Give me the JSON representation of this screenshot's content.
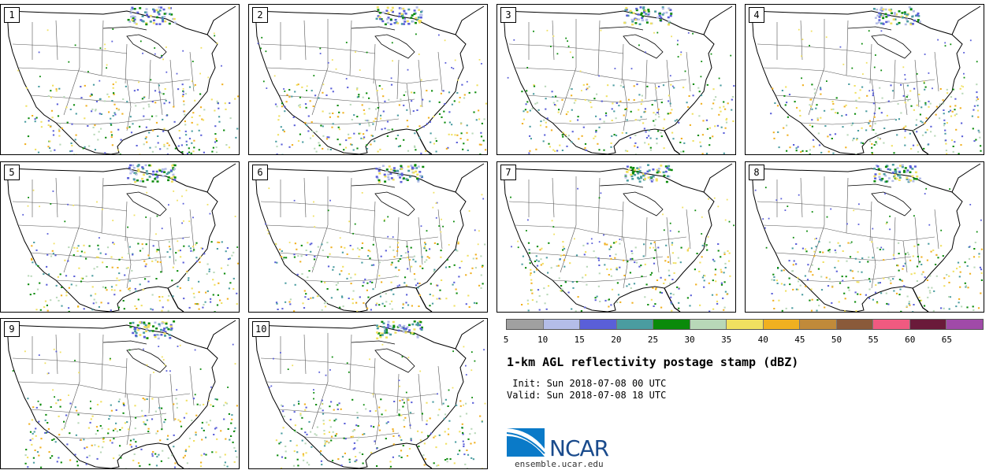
{
  "panels": [
    {
      "label": "1"
    },
    {
      "label": "2"
    },
    {
      "label": "3"
    },
    {
      "label": "4"
    },
    {
      "label": "5"
    },
    {
      "label": "6"
    },
    {
      "label": "7"
    },
    {
      "label": "8"
    },
    {
      "label": "9"
    },
    {
      "label": "10"
    }
  ],
  "colorbar": {
    "colors": [
      "#a0a0a0",
      "#b4bde8",
      "#5a5fd8",
      "#4a9ca0",
      "#0a8a0a",
      "#b8d8b8",
      "#f0e060",
      "#f0b020",
      "#c08a3a",
      "#8a5a3a",
      "#f05a80",
      "#6a1a3a",
      "#a04aa8"
    ],
    "ticks": [
      "5",
      "10",
      "15",
      "20",
      "25",
      "30",
      "35",
      "40",
      "45",
      "50",
      "55",
      "60",
      "65"
    ]
  },
  "title": "1-km AGL reflectivity postage stamp (dBZ)",
  "init_text": " Init: Sun 2018-07-08 00 UTC",
  "valid_text": "Valid: Sun 2018-07-08 18 UTC",
  "logo": {
    "name": "NCAR",
    "url": "ensemble.ucar.edu"
  }
}
